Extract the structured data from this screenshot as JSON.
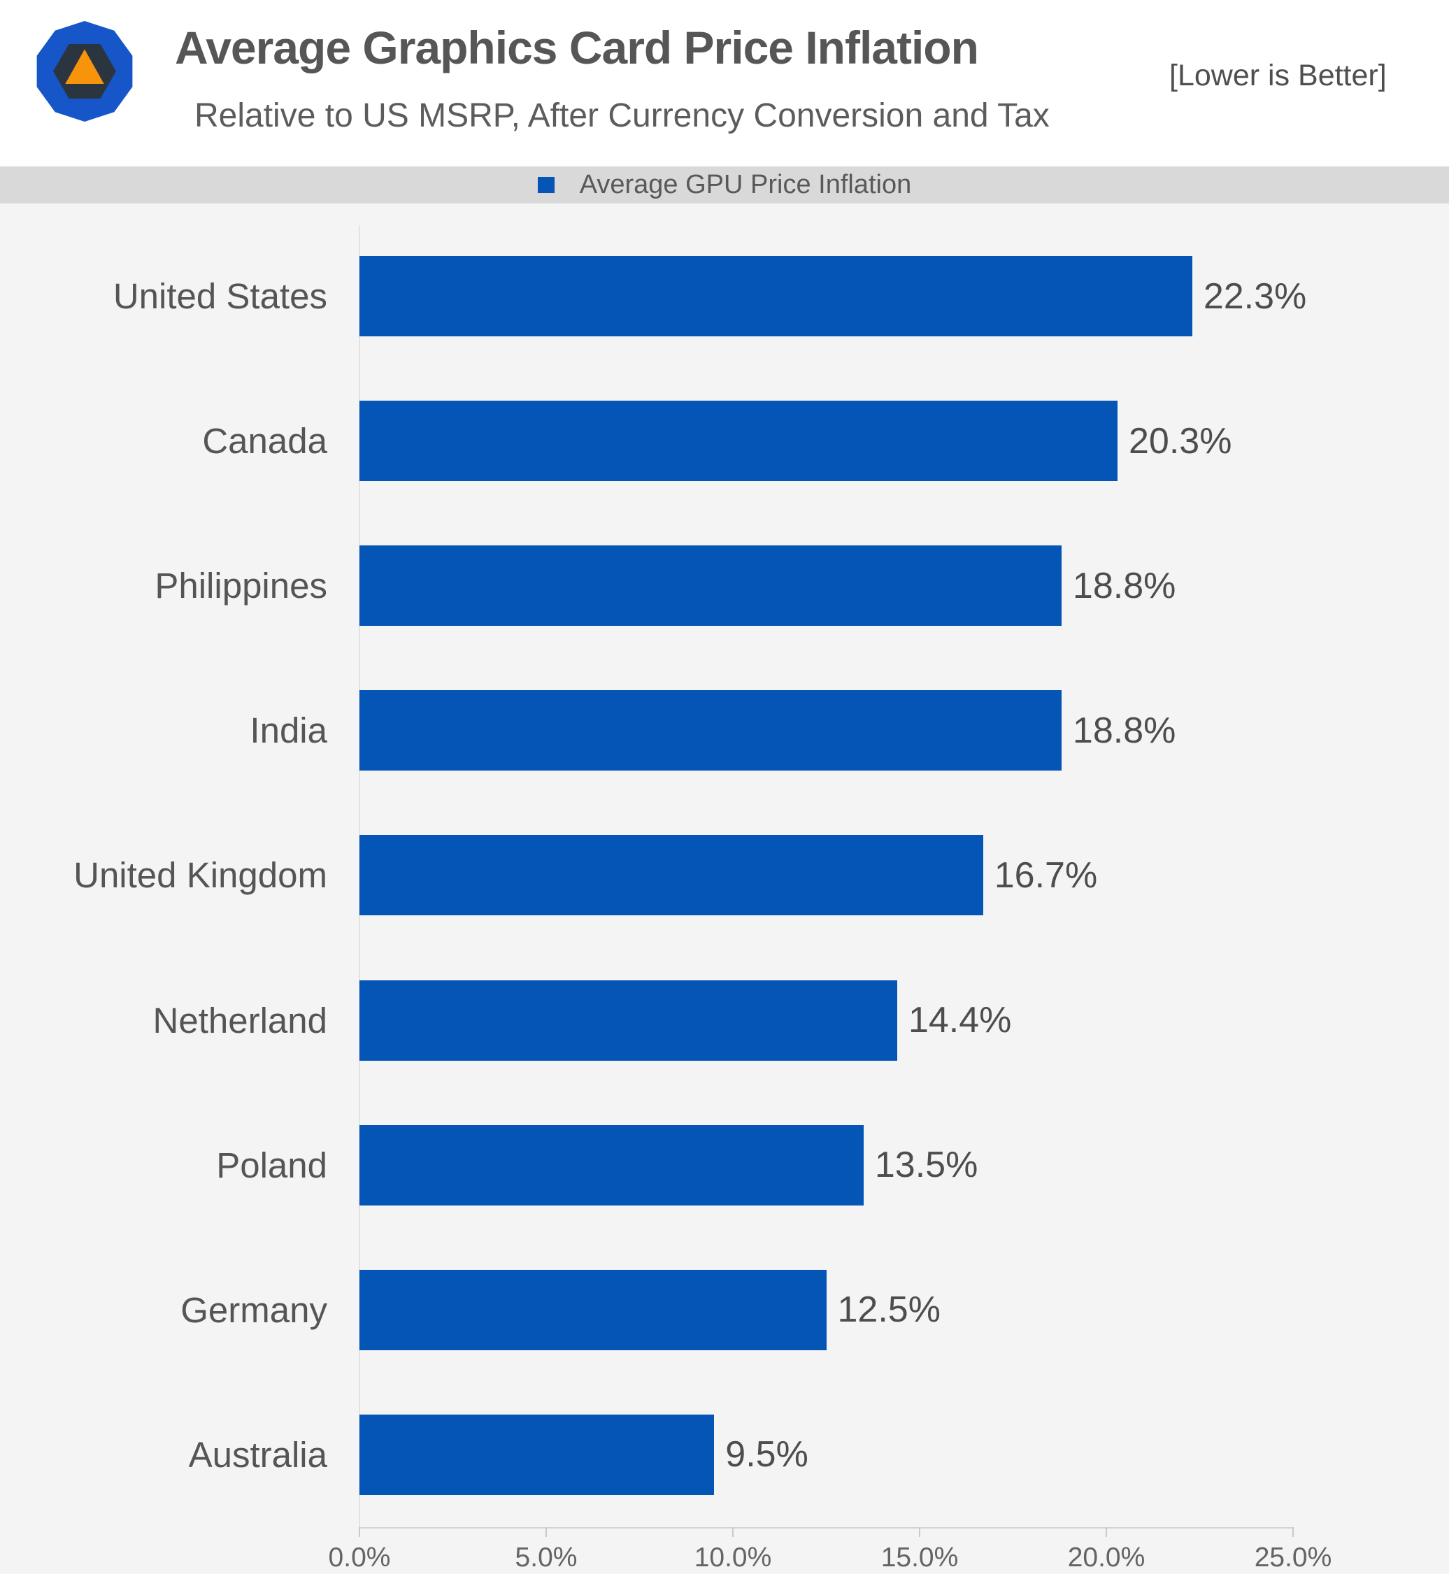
{
  "header": {
    "title": "Average Graphics Card Price Inflation",
    "subtitle": "Relative to US MSRP, After Currency Conversion and Tax",
    "note": "[Lower is Better]",
    "logo": {
      "name": "techspot-hub-logo",
      "outer_color": "#1656c9",
      "inner_color": "#2b3540",
      "triangle_color": "#f8930c"
    }
  },
  "legend": {
    "label": "Average GPU Price Inflation",
    "swatch_color": "#0455b5"
  },
  "chart_data": {
    "type": "bar",
    "orientation": "horizontal",
    "title": "Average Graphics Card Price Inflation",
    "subtitle": "Relative to US MSRP, After Currency Conversion and Tax",
    "series_name": "Average GPU Price Inflation",
    "categories": [
      "United States",
      "Canada",
      "Philippines",
      "India",
      "United Kingdom",
      "Netherland",
      "Poland",
      "Germany",
      "Australia"
    ],
    "values": [
      22.3,
      20.3,
      18.8,
      18.8,
      16.7,
      14.4,
      13.5,
      12.5,
      9.5
    ],
    "value_labels": [
      "22.3%",
      "20.3%",
      "18.8%",
      "18.8%",
      "16.7%",
      "14.4%",
      "13.5%",
      "12.5%",
      "9.5%"
    ],
    "xlabel": "",
    "ylabel": "",
    "xlim": [
      0,
      25
    ],
    "x_ticks": [
      0,
      5,
      10,
      15,
      20,
      25
    ],
    "x_tick_labels": [
      "0.0%",
      "5.0%",
      "10.0%",
      "15.0%",
      "20.0%",
      "25.0%"
    ],
    "grid": false,
    "legend_position": "top",
    "bar_color": "#0455b5",
    "plot_background": "#f4f4f4",
    "legend_strip_background": "#d9d9d9"
  }
}
